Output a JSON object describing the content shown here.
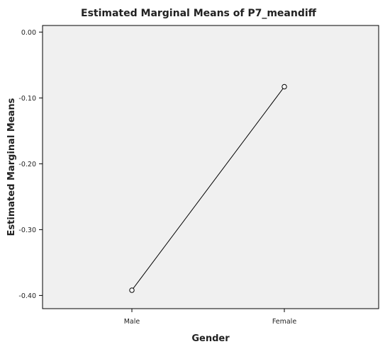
{
  "chart_data": {
    "type": "line",
    "title": "Estimated Marginal Means of P7_meandiff",
    "xlabel": "Gender",
    "ylabel": "Estimated Marginal Means",
    "categories": [
      "Male",
      "Female"
    ],
    "series": [
      {
        "values": [
          -0.392,
          -0.083
        ]
      }
    ],
    "ylim": [
      -0.42,
      0.01
    ],
    "yticks": [
      0.0,
      -0.1,
      -0.2,
      -0.3,
      -0.4
    ],
    "ytick_labels": [
      "0.00",
      "-0.10",
      "-0.20",
      "-0.30",
      "-0.40"
    ],
    "grid": false,
    "legend": "none",
    "colors": {
      "plot_background": "#f0f0f0",
      "line": "#000000",
      "marker_fill": "#ffffff"
    }
  }
}
